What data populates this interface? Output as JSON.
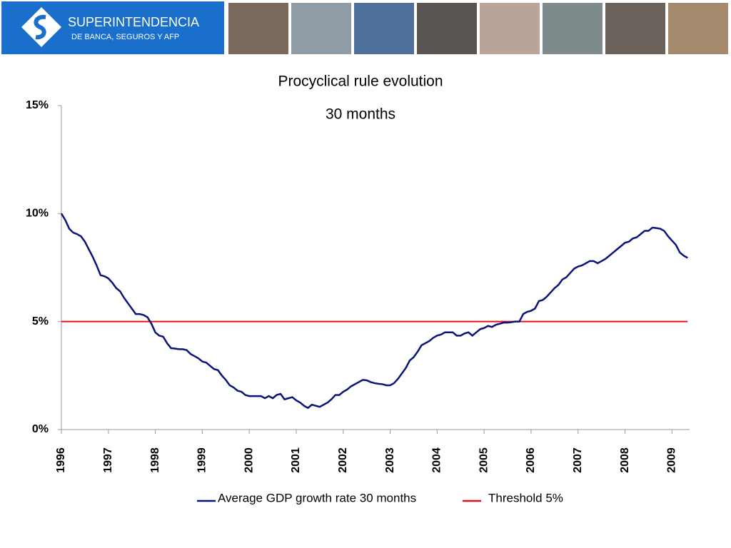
{
  "header": {
    "logo_title": "SUPERINTENDENCIA",
    "logo_subtitle": "DE BANCA, SEGUROS Y AFP"
  },
  "chart_data": {
    "type": "line",
    "title": "Procyclical rule evolution",
    "subtitle": "30 months",
    "categories": [
      "1996",
      null,
      null,
      null,
      null,
      null,
      null,
      null,
      null,
      null,
      null,
      null,
      "1997",
      null,
      null,
      null,
      null,
      null,
      null,
      null,
      null,
      null,
      null,
      null,
      "1998",
      null,
      null,
      null,
      null,
      null,
      null,
      null,
      null,
      null,
      null,
      null,
      "1999",
      null,
      null,
      null,
      null,
      null,
      null,
      null,
      null,
      null,
      null,
      null,
      "2000",
      null,
      null,
      null,
      null,
      null,
      null,
      null,
      null,
      null,
      null,
      null,
      "2001",
      null,
      null,
      null,
      null,
      null,
      null,
      null,
      null,
      null,
      null,
      null,
      "2002",
      null,
      null,
      null,
      null,
      null,
      null,
      null,
      null,
      null,
      null,
      null,
      "2003",
      null,
      null,
      null,
      null,
      null,
      null,
      null,
      null,
      null,
      null,
      null,
      "2004",
      null,
      null,
      null,
      null,
      null,
      null,
      null,
      null,
      null,
      null,
      null,
      "2005",
      null,
      null,
      null,
      null,
      null,
      null,
      null,
      null,
      null,
      null,
      null,
      "2006",
      null,
      null,
      null,
      null,
      null,
      null,
      null,
      null,
      null,
      null,
      null,
      "2007",
      null,
      null,
      null,
      null,
      null,
      null,
      null,
      null,
      null,
      null,
      null,
      "2008",
      null,
      null,
      null,
      null,
      null,
      null,
      null,
      null,
      null,
      null,
      null,
      "2009",
      null,
      null,
      null,
      null
    ],
    "series": [
      {
        "name": "Average GDP growth rate 30 months",
        "color": "#0a1478",
        "values": [
          10.0,
          9.7,
          9.3,
          9.12,
          9.05,
          8.95,
          8.7,
          8.35,
          8.0,
          7.6,
          7.15,
          7.1,
          7.0,
          6.8,
          6.55,
          6.4,
          6.1,
          5.85,
          5.6,
          5.35,
          5.35,
          5.3,
          5.2,
          4.9,
          4.5,
          4.35,
          4.3,
          4.0,
          3.77,
          3.75,
          3.72,
          3.72,
          3.68,
          3.5,
          3.4,
          3.3,
          3.15,
          3.1,
          2.95,
          2.8,
          2.75,
          2.5,
          2.3,
          2.05,
          1.95,
          1.8,
          1.75,
          1.6,
          1.55,
          1.55,
          1.55,
          1.55,
          1.45,
          1.55,
          1.45,
          1.6,
          1.65,
          1.4,
          1.45,
          1.5,
          1.35,
          1.25,
          1.1,
          1.0,
          1.15,
          1.1,
          1.05,
          1.15,
          1.25,
          1.4,
          1.6,
          1.6,
          1.75,
          1.85,
          2.0,
          2.1,
          2.2,
          2.3,
          2.28,
          2.2,
          2.15,
          2.12,
          2.1,
          2.05,
          2.05,
          2.15,
          2.35,
          2.6,
          2.85,
          3.2,
          3.35,
          3.6,
          3.9,
          4.0,
          4.1,
          4.25,
          4.35,
          4.4,
          4.5,
          4.5,
          4.5,
          4.35,
          4.35,
          4.45,
          4.5,
          4.35,
          4.5,
          4.65,
          4.7,
          4.8,
          4.75,
          4.85,
          4.9,
          4.95,
          4.95,
          4.97,
          5.0,
          5.0,
          5.35,
          5.45,
          5.5,
          5.6,
          5.95,
          6.0,
          6.15,
          6.35,
          6.55,
          6.7,
          6.95,
          7.05,
          7.25,
          7.45,
          7.55,
          7.6,
          7.7,
          7.8,
          7.8,
          7.7,
          7.8,
          7.9,
          8.05,
          8.2,
          8.35,
          8.5,
          8.65,
          8.7,
          8.85,
          8.9,
          9.05,
          9.2,
          9.2,
          9.35,
          9.33,
          9.3,
          9.2,
          8.95,
          8.75,
          8.55,
          8.2,
          8.05,
          7.95
        ]
      },
      {
        "name": "Threshold 5%",
        "color": "#e3141b",
        "values": [
          5,
          5,
          5,
          5,
          5,
          5,
          5,
          5,
          5,
          5,
          5,
          5,
          5,
          5,
          5,
          5,
          5,
          5,
          5,
          5,
          5,
          5,
          5,
          5,
          5,
          5,
          5,
          5,
          5,
          5,
          5,
          5,
          5,
          5,
          5,
          5,
          5,
          5,
          5,
          5,
          5,
          5,
          5,
          5,
          5,
          5,
          5,
          5,
          5,
          5,
          5,
          5,
          5,
          5,
          5,
          5,
          5,
          5,
          5,
          5,
          5,
          5,
          5,
          5,
          5,
          5,
          5,
          5,
          5,
          5,
          5,
          5,
          5,
          5,
          5,
          5,
          5,
          5,
          5,
          5,
          5,
          5,
          5,
          5,
          5,
          5,
          5,
          5,
          5,
          5,
          5,
          5,
          5,
          5,
          5,
          5,
          5,
          5,
          5,
          5,
          5,
          5,
          5,
          5,
          5,
          5,
          5,
          5,
          5,
          5,
          5,
          5,
          5,
          5,
          5,
          5,
          5,
          5,
          5,
          5,
          5,
          5,
          5,
          5,
          5,
          5,
          5,
          5,
          5,
          5,
          5,
          5,
          5,
          5,
          5,
          5,
          5,
          5,
          5,
          5,
          5,
          5,
          5,
          5,
          5,
          5,
          5,
          5,
          5,
          5,
          5,
          5,
          5,
          5,
          5,
          5,
          5,
          5,
          5,
          5,
          5
        ]
      }
    ],
    "ylim": [
      0,
      15
    ],
    "yticks": [
      {
        "value": 0,
        "label": "0%"
      },
      {
        "value": 5,
        "label": "5%"
      },
      {
        "value": 10,
        "label": "10%"
      },
      {
        "value": 15,
        "label": "15%"
      }
    ]
  }
}
